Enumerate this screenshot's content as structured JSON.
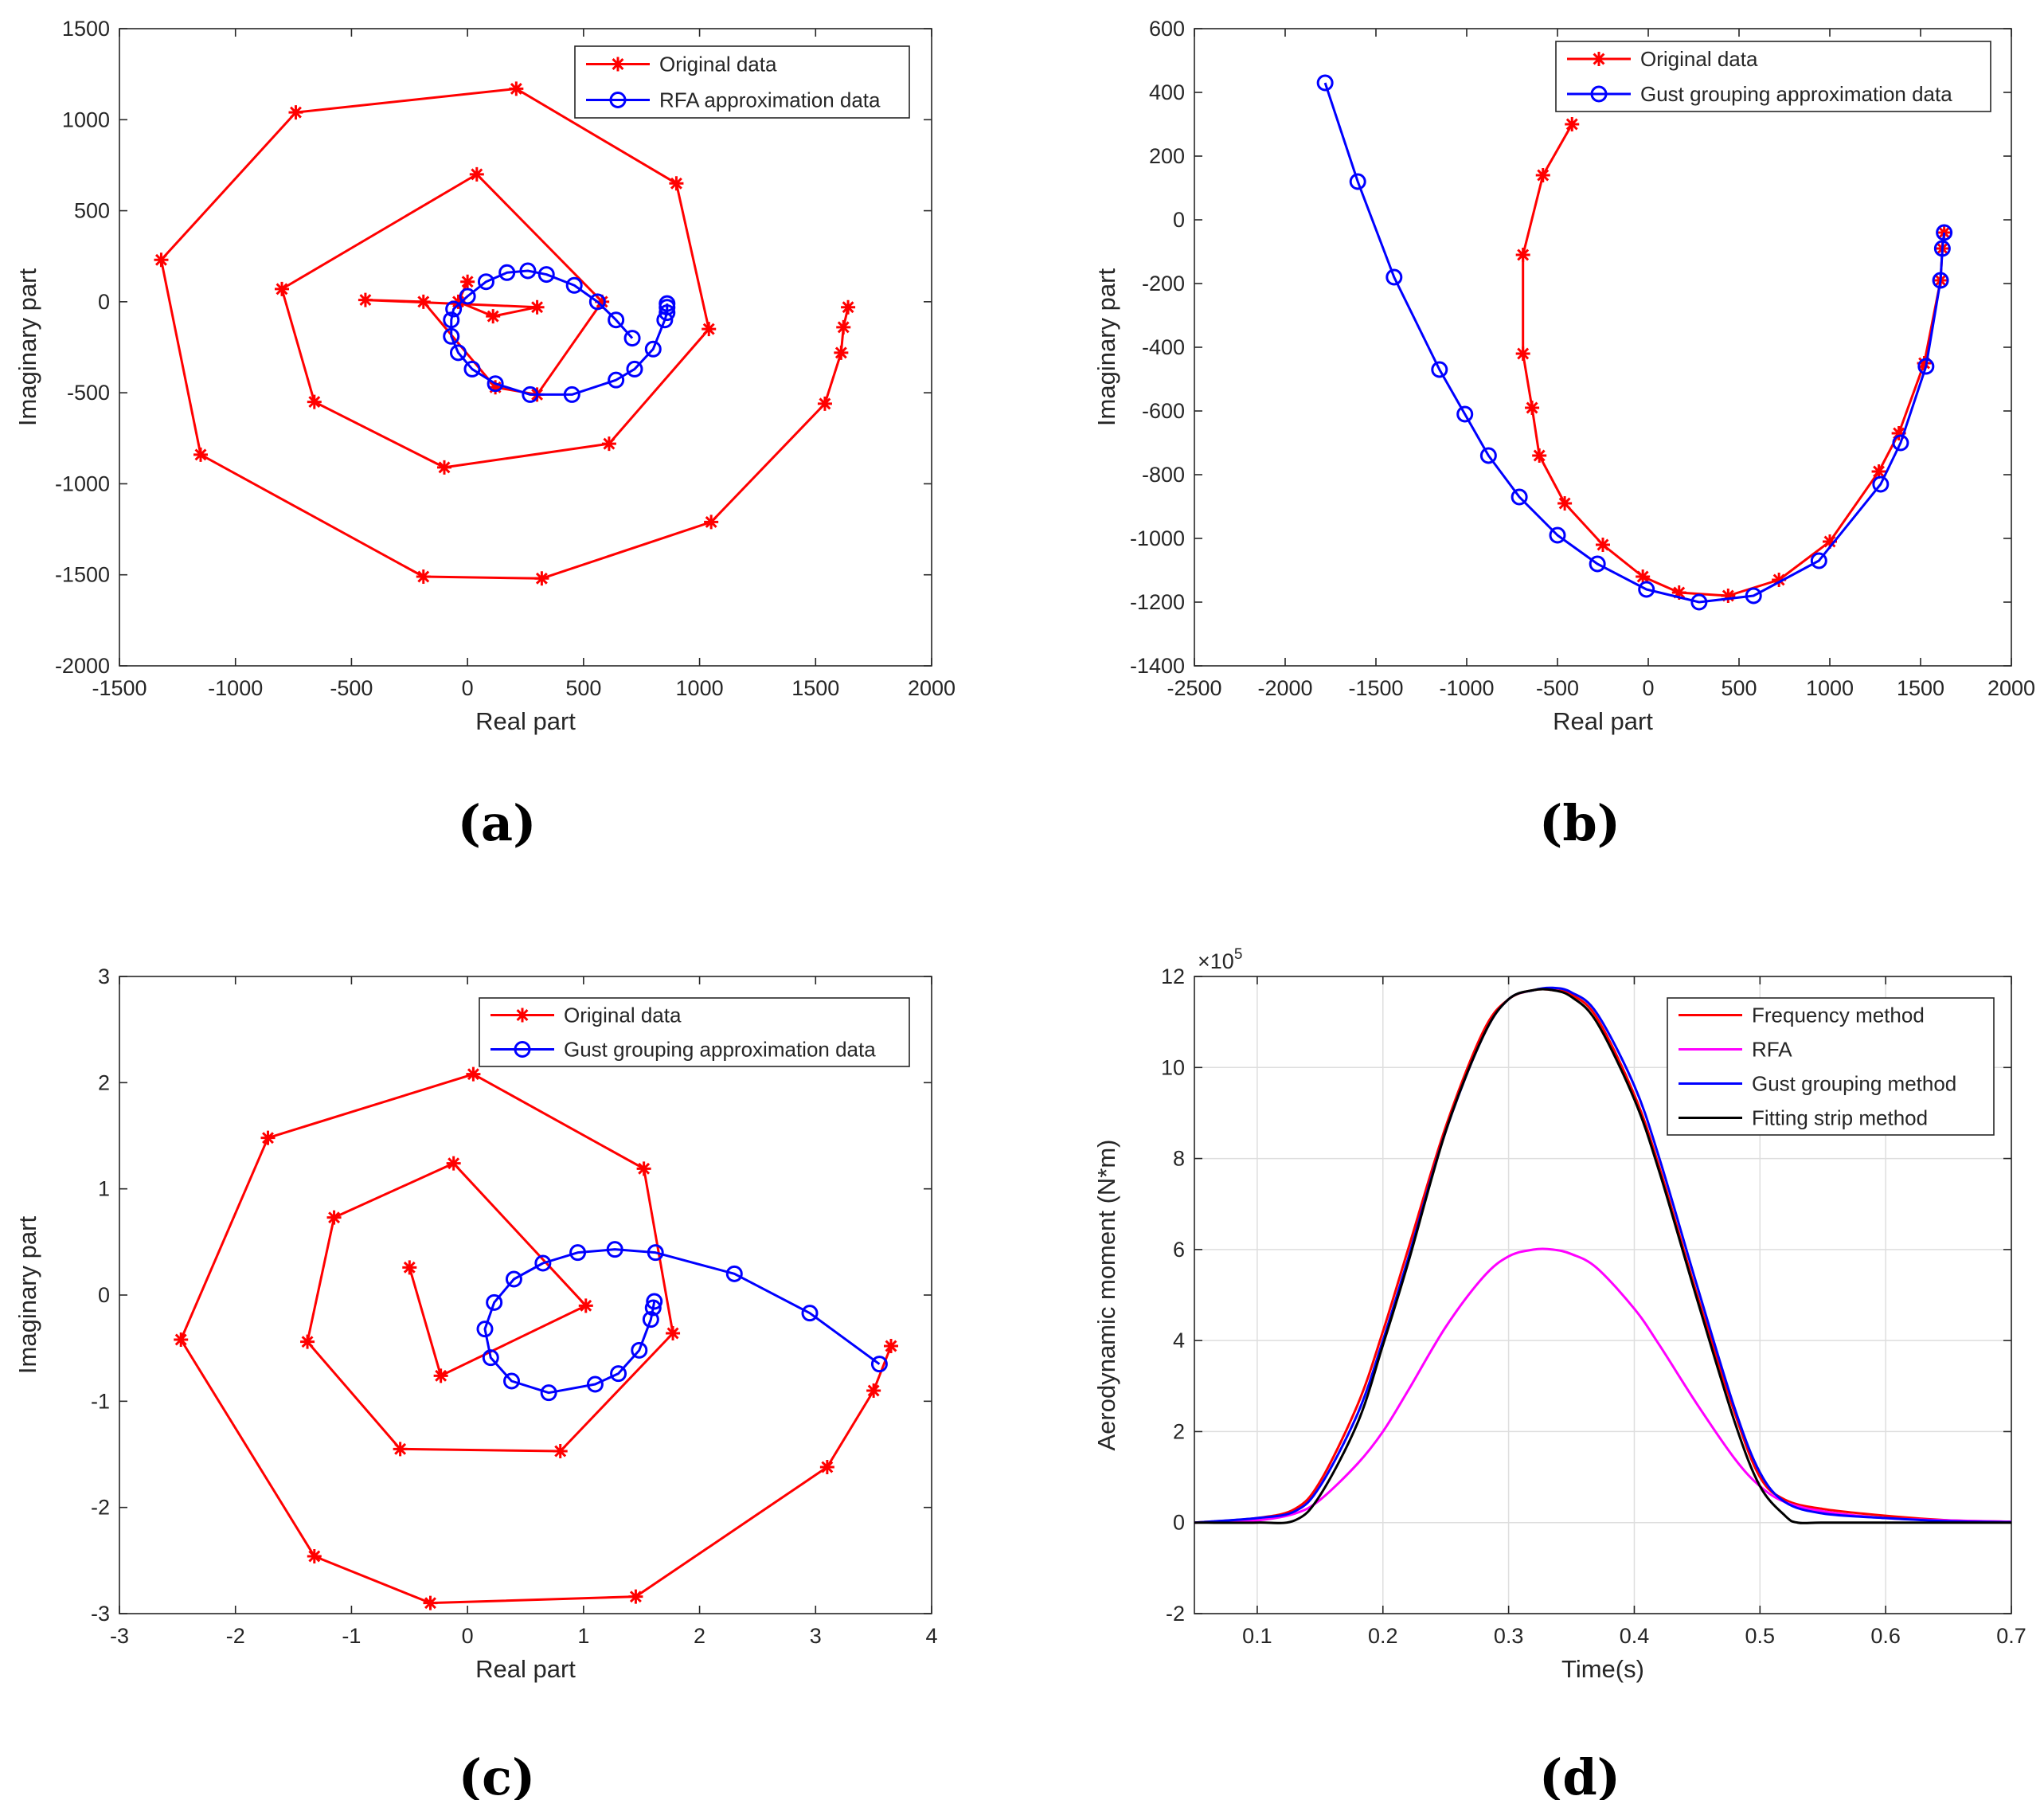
{
  "chart_data": [
    {
      "id": "a",
      "type": "line",
      "panel_label": "(a)",
      "xlabel": "Real part",
      "ylabel": "Imaginary part",
      "xlim": [
        -1500,
        2000
      ],
      "ylim": [
        -2000,
        1500
      ],
      "xticks": [
        -1500,
        -1000,
        -500,
        0,
        500,
        1000,
        1500,
        2000
      ],
      "yticks": [
        -2000,
        -1500,
        -1000,
        -500,
        0,
        500,
        1000,
        1500
      ],
      "xtick_labels": [
        "-1500",
        "-1000",
        "-500",
        "0",
        "500",
        "1000",
        "1500",
        "2000"
      ],
      "ytick_labels": [
        "-2000",
        "-1500",
        "-1000",
        "-500",
        "0",
        "500",
        "1000",
        "1500"
      ],
      "grid": false,
      "legend_position": "top-right",
      "series": [
        {
          "name": "Original data",
          "color": "#ff0000",
          "marker": "asterisk",
          "x": [
            1640,
            1620,
            1610,
            1540,
            1050,
            320,
            -190,
            -1150,
            -1320,
            -740,
            210,
            900,
            1040,
            610,
            -100,
            -660,
            -800,
            40,
            580,
            300,
            120,
            -190,
            -440,
            300,
            110,
            -40,
            0
          ],
          "y": [
            -30,
            -140,
            -280,
            -560,
            -1210,
            -1520,
            -1510,
            -840,
            230,
            1040,
            1170,
            650,
            -150,
            -780,
            -910,
            -550,
            70,
            700,
            0,
            -510,
            -470,
            0,
            10,
            -30,
            -80,
            0,
            110
          ]
        },
        {
          "name": "RFA approximation data",
          "color": "#0000ff",
          "marker": "circle",
          "x": [
            860,
            860,
            860,
            850,
            800,
            720,
            640,
            450,
            270,
            120,
            20,
            -40,
            -70,
            -70,
            -60,
            0,
            80,
            170,
            260,
            340,
            460,
            560,
            640,
            710
          ],
          "y": [
            -10,
            -30,
            -60,
            -100,
            -260,
            -370,
            -430,
            -510,
            -510,
            -450,
            -370,
            -280,
            -190,
            -100,
            -40,
            30,
            110,
            160,
            170,
            150,
            90,
            0,
            -100,
            -200
          ]
        }
      ]
    },
    {
      "id": "b",
      "type": "line",
      "panel_label": "(b)",
      "xlabel": "Real part",
      "ylabel": "Imaginary part",
      "xlim": [
        -2500,
        2000
      ],
      "ylim": [
        -1400,
        600
      ],
      "xticks": [
        -2500,
        -2000,
        -1500,
        -1000,
        -500,
        0,
        500,
        1000,
        1500,
        2000
      ],
      "yticks": [
        -1400,
        -1200,
        -1000,
        -800,
        -600,
        -400,
        -200,
        0,
        200,
        400,
        600
      ],
      "xtick_labels": [
        "-2500",
        "-2000",
        "-1500",
        "-1000",
        "-500",
        "0",
        "500",
        "1000",
        "1500",
        "2000"
      ],
      "ytick_labels": [
        "-1400",
        "-1200",
        "-1000",
        "-800",
        "-600",
        "-400",
        "-200",
        "0",
        "200",
        "400",
        "600"
      ],
      "grid": false,
      "legend_position": "top-right",
      "series": [
        {
          "name": "Original data",
          "color": "#ff0000",
          "marker": "asterisk",
          "x": [
            -420,
            -580,
            -690,
            -690,
            -640,
            -600,
            -460,
            -250,
            -30,
            170,
            440,
            720,
            1000,
            1270,
            1380,
            1520,
            1610,
            1620,
            1630
          ],
          "y": [
            300,
            140,
            -110,
            -420,
            -590,
            -740,
            -890,
            -1020,
            -1120,
            -1170,
            -1180,
            -1130,
            -1010,
            -790,
            -670,
            -450,
            -190,
            -90,
            -40
          ]
        },
        {
          "name": "Gust grouping approximation data",
          "color": "#0000ff",
          "marker": "circle",
          "x": [
            -1780,
            -1600,
            -1400,
            -1150,
            -1010,
            -880,
            -710,
            -500,
            -280,
            -10,
            280,
            580,
            940,
            1280,
            1390,
            1530,
            1610,
            1620,
            1630
          ],
          "y": [
            430,
            120,
            -180,
            -470,
            -610,
            -740,
            -870,
            -990,
            -1080,
            -1160,
            -1200,
            -1180,
            -1070,
            -830,
            -700,
            -460,
            -190,
            -90,
            -40
          ]
        }
      ]
    },
    {
      "id": "c",
      "type": "line",
      "panel_label": "(c)",
      "xlabel": "Real part",
      "ylabel": "Imaginary part",
      "xlim": [
        -3,
        4
      ],
      "ylim": [
        -3,
        3
      ],
      "xticks": [
        -3,
        -2,
        -1,
        0,
        1,
        2,
        3,
        4
      ],
      "yticks": [
        -3,
        -2,
        -1,
        0,
        1,
        2,
        3
      ],
      "xtick_labels": [
        "-3",
        "-2",
        "-1",
        "0",
        "1",
        "2",
        "3",
        "4"
      ],
      "ytick_labels": [
        "-3",
        "-2",
        "-1",
        "0",
        "1",
        "2",
        "3"
      ],
      "grid": false,
      "legend_position": "top-right",
      "series": [
        {
          "name": "Original data",
          "color": "#ff0000",
          "marker": "asterisk",
          "x": [
            3.65,
            3.5,
            3.1,
            1.45,
            -0.32,
            -1.32,
            -2.47,
            -1.72,
            0.05,
            1.52,
            1.77,
            0.8,
            -0.58,
            -1.38,
            -1.15,
            -0.12,
            1.02,
            -0.23,
            -0.5
          ],
          "y": [
            -0.48,
            -0.9,
            -1.62,
            -2.84,
            -2.9,
            -2.46,
            -0.42,
            1.48,
            2.08,
            1.19,
            -0.36,
            -1.47,
            -1.45,
            -0.44,
            0.73,
            1.24,
            -0.1,
            -0.76,
            0.26
          ]
        },
        {
          "name": "Gust grouping approximation data",
          "color": "#0000ff",
          "marker": "circle",
          "x": [
            3.55,
            2.95,
            2.3,
            1.62,
            1.27,
            0.95,
            0.65,
            0.4,
            0.23,
            0.15,
            0.2,
            0.38,
            0.7,
            1.1,
            1.3,
            1.48,
            1.58,
            1.6,
            1.61
          ],
          "y": [
            -0.65,
            -0.17,
            0.2,
            0.4,
            0.43,
            0.4,
            0.3,
            0.15,
            -0.07,
            -0.32,
            -0.59,
            -0.81,
            -0.92,
            -0.84,
            -0.74,
            -0.52,
            -0.23,
            -0.12,
            -0.06
          ]
        }
      ]
    },
    {
      "id": "d",
      "type": "line",
      "panel_label": "(d)",
      "xlabel": "Time(s)",
      "ylabel": "Aerodynamic moment (N*m)",
      "exponent_label": "×10",
      "exponent_power": "5",
      "xlim": [
        0.05,
        0.7
      ],
      "ylim": [
        -2,
        12
      ],
      "xticks": [
        0.1,
        0.2,
        0.3,
        0.4,
        0.5,
        0.6,
        0.7
      ],
      "yticks": [
        -2,
        0,
        2,
        4,
        6,
        8,
        10,
        12
      ],
      "xtick_labels": [
        "0.1",
        "0.2",
        "0.3",
        "0.4",
        "0.5",
        "0.6",
        "0.7"
      ],
      "ytick_labels": [
        "-2",
        "0",
        "2",
        "4",
        "6",
        "8",
        "10",
        "12"
      ],
      "grid": true,
      "legend_position": "top-right",
      "series": [
        {
          "name": "Frequency method",
          "color": "#ff0000",
          "x": [
            0.05,
            0.1,
            0.13,
            0.15,
            0.18,
            0.2,
            0.22,
            0.25,
            0.28,
            0.3,
            0.32,
            0.335,
            0.35,
            0.37,
            0.4,
            0.42,
            0.45,
            0.48,
            0.5,
            0.52,
            0.55,
            0.6,
            0.65,
            0.7
          ],
          "y": [
            0,
            0.1,
            0.3,
            0.9,
            2.6,
            4.2,
            6.0,
            8.7,
            10.8,
            11.5,
            11.7,
            11.7,
            11.6,
            11.1,
            9.4,
            7.8,
            5.0,
            2.4,
            1.0,
            0.5,
            0.3,
            0.15,
            0.05,
            0.02
          ]
        },
        {
          "name": "RFA",
          "color": "#ff00ff",
          "x": [
            0.05,
            0.1,
            0.13,
            0.15,
            0.18,
            0.2,
            0.22,
            0.25,
            0.28,
            0.3,
            0.32,
            0.335,
            0.35,
            0.37,
            0.4,
            0.42,
            0.45,
            0.48,
            0.5,
            0.52,
            0.55,
            0.6,
            0.65,
            0.7
          ],
          "y": [
            0,
            0.05,
            0.2,
            0.5,
            1.3,
            2.0,
            2.9,
            4.3,
            5.4,
            5.85,
            6.0,
            6.0,
            5.9,
            5.6,
            4.7,
            3.9,
            2.6,
            1.4,
            0.8,
            0.45,
            0.25,
            0.1,
            0.05,
            0.02
          ]
        },
        {
          "name": "Gust grouping method",
          "color": "#0000ff",
          "x": [
            0.05,
            0.1,
            0.13,
            0.15,
            0.18,
            0.2,
            0.22,
            0.25,
            0.28,
            0.3,
            0.32,
            0.335,
            0.35,
            0.37,
            0.4,
            0.42,
            0.45,
            0.48,
            0.5,
            0.52,
            0.55,
            0.6,
            0.65,
            0.7
          ],
          "y": [
            0,
            0.1,
            0.25,
            0.8,
            2.4,
            4.0,
            5.8,
            8.6,
            10.7,
            11.5,
            11.7,
            11.75,
            11.65,
            11.2,
            9.6,
            8.0,
            5.2,
            2.5,
            1.1,
            0.45,
            0.2,
            0.1,
            0.03,
            0.01
          ]
        },
        {
          "name": "Fitting strip method",
          "color": "#000000",
          "x": [
            0.05,
            0.1,
            0.13,
            0.15,
            0.18,
            0.2,
            0.22,
            0.25,
            0.28,
            0.3,
            0.32,
            0.335,
            0.35,
            0.37,
            0.4,
            0.42,
            0.45,
            0.48,
            0.5,
            0.52,
            0.53,
            0.55,
            0.6,
            0.7
          ],
          "y": [
            0,
            0,
            0.05,
            0.6,
            2.2,
            3.9,
            5.7,
            8.6,
            10.7,
            11.5,
            11.7,
            11.7,
            11.55,
            11.0,
            9.3,
            7.7,
            4.9,
            2.2,
            0.8,
            0.15,
            0,
            0,
            0,
            0
          ]
        }
      ]
    }
  ]
}
